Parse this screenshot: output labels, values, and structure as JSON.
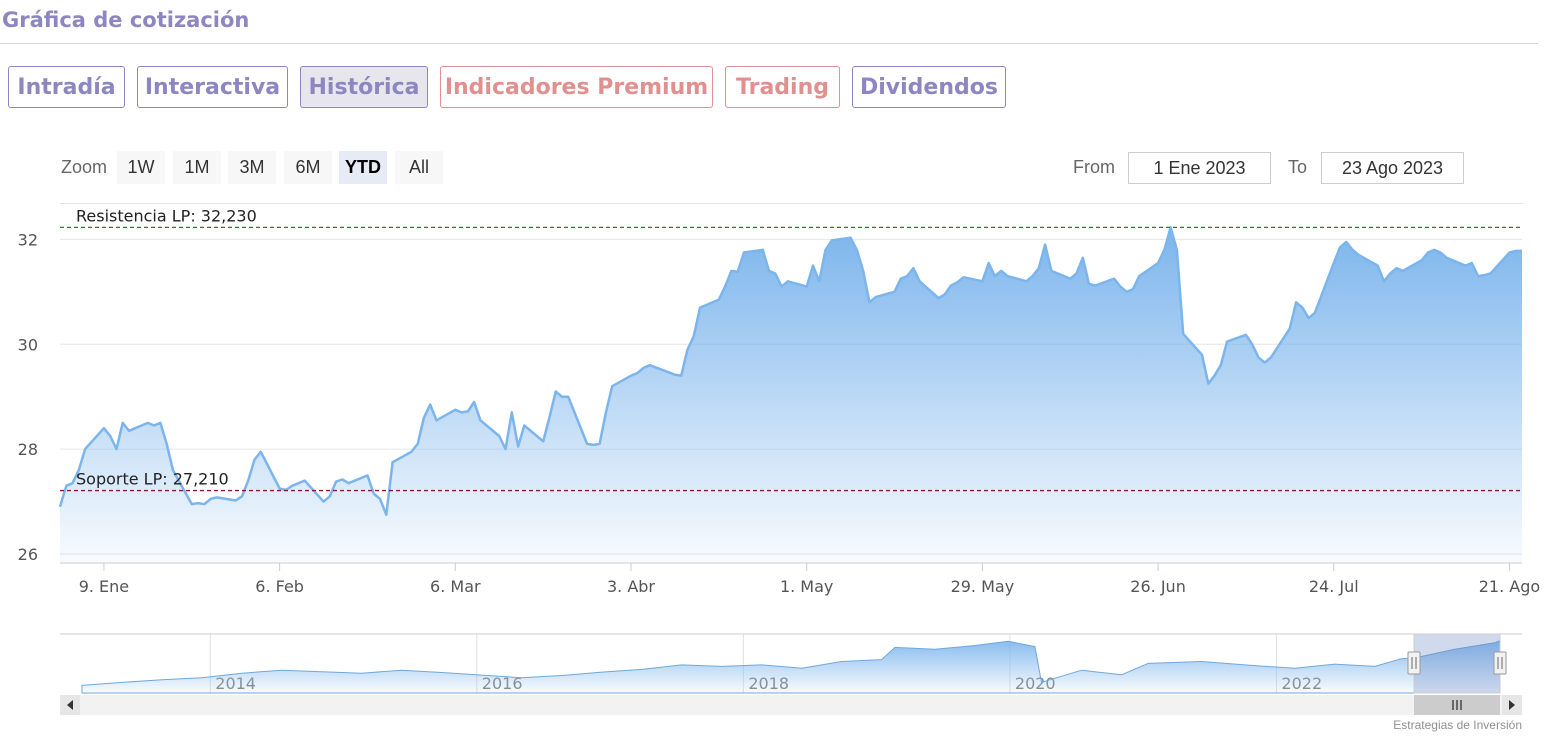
{
  "header": {
    "title": "Gráfica de cotización"
  },
  "tabs": [
    {
      "label": "Intradía",
      "kind": "normal"
    },
    {
      "label": "Interactiva",
      "kind": "normal"
    },
    {
      "label": "Histórica",
      "kind": "active"
    },
    {
      "label": "Indicadores Premium",
      "kind": "premium"
    },
    {
      "label": "Trading",
      "kind": "premium"
    },
    {
      "label": "Dividendos",
      "kind": "normal"
    }
  ],
  "zoom": {
    "label": "Zoom",
    "buttons": [
      "1W",
      "1M",
      "3M",
      "6M",
      "YTD",
      "All"
    ],
    "selected": "YTD"
  },
  "range": {
    "from_label": "From",
    "from_value": "1 Ene 2023",
    "to_label": "To",
    "to_value": "23 Ago 2023"
  },
  "credits": "Estrategias de Inversión",
  "colors": {
    "accent": "#8e86c0",
    "premium": "#e0908f",
    "series_line": "#7cb5ec",
    "resistance": "#2e7d32",
    "support": "#8b1a2b"
  },
  "chart_data": {
    "type": "area",
    "ylim": [
      26,
      32.5
    ],
    "yticks": [
      26,
      28,
      30,
      32
    ],
    "x_start": "2023-01-02",
    "x_end": "2023-08-23",
    "xticks": [
      {
        "date": "2023-01-09",
        "label": "9. Ene"
      },
      {
        "date": "2023-02-06",
        "label": "6. Feb"
      },
      {
        "date": "2023-03-06",
        "label": "6. Mar"
      },
      {
        "date": "2023-04-03",
        "label": "3. Abr"
      },
      {
        "date": "2023-05-01",
        "label": "1. May"
      },
      {
        "date": "2023-05-29",
        "label": "29. May"
      },
      {
        "date": "2023-06-26",
        "label": "26. Jun"
      },
      {
        "date": "2023-07-24",
        "label": "24. Jul"
      },
      {
        "date": "2023-08-21",
        "label": "21. Ago"
      }
    ],
    "series": [
      {
        "values": [
          [
            "2023-01-02",
            26.9
          ],
          [
            "2023-01-03",
            27.3
          ],
          [
            "2023-01-04",
            27.35
          ],
          [
            "2023-01-05",
            27.6
          ],
          [
            "2023-01-06",
            28.0
          ],
          [
            "2023-01-09",
            28.4
          ],
          [
            "2023-01-10",
            28.25
          ],
          [
            "2023-01-11",
            28.0
          ],
          [
            "2023-01-12",
            28.5
          ],
          [
            "2023-01-13",
            28.35
          ],
          [
            "2023-01-16",
            28.5
          ],
          [
            "2023-01-17",
            28.45
          ],
          [
            "2023-01-18",
            28.5
          ],
          [
            "2023-01-19",
            28.1
          ],
          [
            "2023-01-20",
            27.6
          ],
          [
            "2023-01-23",
            26.95
          ],
          [
            "2023-01-24",
            26.97
          ],
          [
            "2023-01-25",
            26.95
          ],
          [
            "2023-01-26",
            27.05
          ],
          [
            "2023-01-27",
            27.08
          ],
          [
            "2023-01-30",
            27.02
          ],
          [
            "2023-01-31",
            27.1
          ],
          [
            "2023-02-01",
            27.4
          ],
          [
            "2023-02-02",
            27.8
          ],
          [
            "2023-02-03",
            27.95
          ],
          [
            "2023-02-06",
            27.25
          ],
          [
            "2023-02-07",
            27.22
          ],
          [
            "2023-02-08",
            27.3
          ],
          [
            "2023-02-09",
            27.35
          ],
          [
            "2023-02-10",
            27.4
          ],
          [
            "2023-02-13",
            27.0
          ],
          [
            "2023-02-14",
            27.1
          ],
          [
            "2023-02-15",
            27.38
          ],
          [
            "2023-02-16",
            27.42
          ],
          [
            "2023-02-17",
            27.35
          ],
          [
            "2023-02-20",
            27.5
          ],
          [
            "2023-02-21",
            27.15
          ],
          [
            "2023-02-22",
            27.05
          ],
          [
            "2023-02-23",
            26.75
          ],
          [
            "2023-02-24",
            27.75
          ],
          [
            "2023-02-27",
            27.95
          ],
          [
            "2023-02-28",
            28.1
          ],
          [
            "2023-03-01",
            28.6
          ],
          [
            "2023-03-02",
            28.85
          ],
          [
            "2023-03-03",
            28.55
          ],
          [
            "2023-03-06",
            28.75
          ],
          [
            "2023-03-07",
            28.7
          ],
          [
            "2023-03-08",
            28.72
          ],
          [
            "2023-03-09",
            28.9
          ],
          [
            "2023-03-10",
            28.55
          ],
          [
            "2023-03-13",
            28.25
          ],
          [
            "2023-03-14",
            28.0
          ],
          [
            "2023-03-15",
            28.7
          ],
          [
            "2023-03-16",
            28.05
          ],
          [
            "2023-03-17",
            28.45
          ],
          [
            "2023-03-20",
            28.15
          ],
          [
            "2023-03-21",
            28.6
          ],
          [
            "2023-03-22",
            29.1
          ],
          [
            "2023-03-23",
            29.0
          ],
          [
            "2023-03-24",
            29.0
          ],
          [
            "2023-03-27",
            28.1
          ],
          [
            "2023-03-28",
            28.08
          ],
          [
            "2023-03-29",
            28.1
          ],
          [
            "2023-03-30",
            28.7
          ],
          [
            "2023-03-31",
            29.2
          ],
          [
            "2023-04-03",
            29.4
          ],
          [
            "2023-04-04",
            29.45
          ],
          [
            "2023-04-05",
            29.55
          ],
          [
            "2023-04-06",
            29.6
          ],
          [
            "2023-04-10",
            29.42
          ],
          [
            "2023-04-11",
            29.4
          ],
          [
            "2023-04-12",
            29.9
          ],
          [
            "2023-04-13",
            30.15
          ],
          [
            "2023-04-14",
            30.7
          ],
          [
            "2023-04-17",
            30.85
          ],
          [
            "2023-04-18",
            31.1
          ],
          [
            "2023-04-19",
            31.4
          ],
          [
            "2023-04-20",
            31.38
          ],
          [
            "2023-04-21",
            31.75
          ],
          [
            "2023-04-24",
            31.8
          ],
          [
            "2023-04-25",
            31.4
          ],
          [
            "2023-04-26",
            31.35
          ],
          [
            "2023-04-27",
            31.1
          ],
          [
            "2023-04-28",
            31.2
          ],
          [
            "2023-05-01",
            31.1
          ],
          [
            "2023-05-02",
            31.5
          ],
          [
            "2023-05-03",
            31.2
          ],
          [
            "2023-05-04",
            31.8
          ],
          [
            "2023-05-05",
            31.98
          ],
          [
            "2023-05-08",
            32.03
          ],
          [
            "2023-05-09",
            31.8
          ],
          [
            "2023-05-10",
            31.4
          ],
          [
            "2023-05-11",
            30.8
          ],
          [
            "2023-05-12",
            30.9
          ],
          [
            "2023-05-15",
            31.0
          ],
          [
            "2023-05-16",
            31.25
          ],
          [
            "2023-05-17",
            31.3
          ],
          [
            "2023-05-18",
            31.45
          ],
          [
            "2023-05-19",
            31.2
          ],
          [
            "2023-05-22",
            30.88
          ],
          [
            "2023-05-23",
            30.95
          ],
          [
            "2023-05-24",
            31.12
          ],
          [
            "2023-05-25",
            31.18
          ],
          [
            "2023-05-26",
            31.28
          ],
          [
            "2023-05-29",
            31.2
          ],
          [
            "2023-05-30",
            31.55
          ],
          [
            "2023-05-31",
            31.3
          ],
          [
            "2023-06-01",
            31.4
          ],
          [
            "2023-06-02",
            31.3
          ],
          [
            "2023-06-05",
            31.2
          ],
          [
            "2023-06-06",
            31.3
          ],
          [
            "2023-06-07",
            31.45
          ],
          [
            "2023-06-08",
            31.9
          ],
          [
            "2023-06-09",
            31.4
          ],
          [
            "2023-06-12",
            31.25
          ],
          [
            "2023-06-13",
            31.35
          ],
          [
            "2023-06-14",
            31.65
          ],
          [
            "2023-06-15",
            31.15
          ],
          [
            "2023-06-16",
            31.12
          ],
          [
            "2023-06-19",
            31.25
          ],
          [
            "2023-06-20",
            31.1
          ],
          [
            "2023-06-21",
            31.0
          ],
          [
            "2023-06-22",
            31.05
          ],
          [
            "2023-06-23",
            31.3
          ],
          [
            "2023-06-26",
            31.55
          ],
          [
            "2023-06-27",
            31.8
          ],
          [
            "2023-06-28",
            32.23
          ],
          [
            "2023-06-29",
            31.8
          ],
          [
            "2023-06-30",
            30.2
          ],
          [
            "2023-07-03",
            29.8
          ],
          [
            "2023-07-04",
            29.25
          ],
          [
            "2023-07-05",
            29.4
          ],
          [
            "2023-07-06",
            29.6
          ],
          [
            "2023-07-07",
            30.05
          ],
          [
            "2023-07-10",
            30.18
          ],
          [
            "2023-07-11",
            30.0
          ],
          [
            "2023-07-12",
            29.75
          ],
          [
            "2023-07-13",
            29.65
          ],
          [
            "2023-07-14",
            29.75
          ],
          [
            "2023-07-17",
            30.3
          ],
          [
            "2023-07-18",
            30.8
          ],
          [
            "2023-07-19",
            30.7
          ],
          [
            "2023-07-20",
            30.5
          ],
          [
            "2023-07-21",
            30.6
          ],
          [
            "2023-07-24",
            31.55
          ],
          [
            "2023-07-25",
            31.85
          ],
          [
            "2023-07-26",
            31.95
          ],
          [
            "2023-07-27",
            31.8
          ],
          [
            "2023-07-28",
            31.7
          ],
          [
            "2023-07-31",
            31.5
          ],
          [
            "2023-08-01",
            31.2
          ],
          [
            "2023-08-02",
            31.35
          ],
          [
            "2023-08-03",
            31.45
          ],
          [
            "2023-08-04",
            31.4
          ],
          [
            "2023-08-07",
            31.6
          ],
          [
            "2023-08-08",
            31.75
          ],
          [
            "2023-08-09",
            31.8
          ],
          [
            "2023-08-10",
            31.75
          ],
          [
            "2023-08-11",
            31.65
          ],
          [
            "2023-08-14",
            31.5
          ],
          [
            "2023-08-15",
            31.55
          ],
          [
            "2023-08-16",
            31.3
          ],
          [
            "2023-08-17",
            31.32
          ],
          [
            "2023-08-18",
            31.35
          ],
          [
            "2023-08-21",
            31.75
          ],
          [
            "2023-08-22",
            31.78
          ],
          [
            "2023-08-23",
            31.78
          ]
        ]
      }
    ],
    "reference_lines": [
      {
        "label": "Resistencia LP: 32,230",
        "value": 32.23,
        "style": "dashed",
        "color": "#2e7d32"
      },
      {
        "label": "Soporte LP: 27,210",
        "value": 27.21,
        "style": "dashed",
        "color": "#8b1a2b"
      }
    ],
    "navigator": {
      "type": "area",
      "year_labels": [
        "2014",
        "2016",
        "2018",
        "2020",
        "2022"
      ],
      "points": [
        [
          2013.0,
          20.0
        ],
        [
          2013.3,
          20.8
        ],
        [
          2013.6,
          21.5
        ],
        [
          2013.9,
          22.0
        ],
        [
          2014.2,
          23.2
        ],
        [
          2014.5,
          24.0
        ],
        [
          2014.8,
          23.6
        ],
        [
          2015.1,
          23.2
        ],
        [
          2015.4,
          24.0
        ],
        [
          2015.7,
          23.4
        ],
        [
          2016.0,
          22.7
        ],
        [
          2016.3,
          22.0
        ],
        [
          2016.6,
          22.6
        ],
        [
          2016.9,
          23.5
        ],
        [
          2017.2,
          24.2
        ],
        [
          2017.5,
          25.4
        ],
        [
          2017.8,
          25.0
        ],
        [
          2018.1,
          25.4
        ],
        [
          2018.4,
          24.5
        ],
        [
          2018.7,
          26.3
        ],
        [
          2019.0,
          26.8
        ],
        [
          2019.1,
          30.0
        ],
        [
          2019.4,
          29.5
        ],
        [
          2019.7,
          30.5
        ],
        [
          2019.95,
          31.6
        ],
        [
          2020.15,
          30.2
        ],
        [
          2020.2,
          20.8
        ],
        [
          2020.5,
          24.0
        ],
        [
          2020.8,
          22.8
        ],
        [
          2021.0,
          25.8
        ],
        [
          2021.4,
          26.3
        ],
        [
          2021.8,
          25.2
        ],
        [
          2022.1,
          24.5
        ],
        [
          2022.4,
          25.6
        ],
        [
          2022.7,
          25.0
        ],
        [
          2022.9,
          27.0
        ],
        [
          2023.0,
          27.2
        ],
        [
          2023.3,
          29.5
        ],
        [
          2023.6,
          31.2
        ],
        [
          2023.64,
          31.8
        ]
      ]
    }
  }
}
